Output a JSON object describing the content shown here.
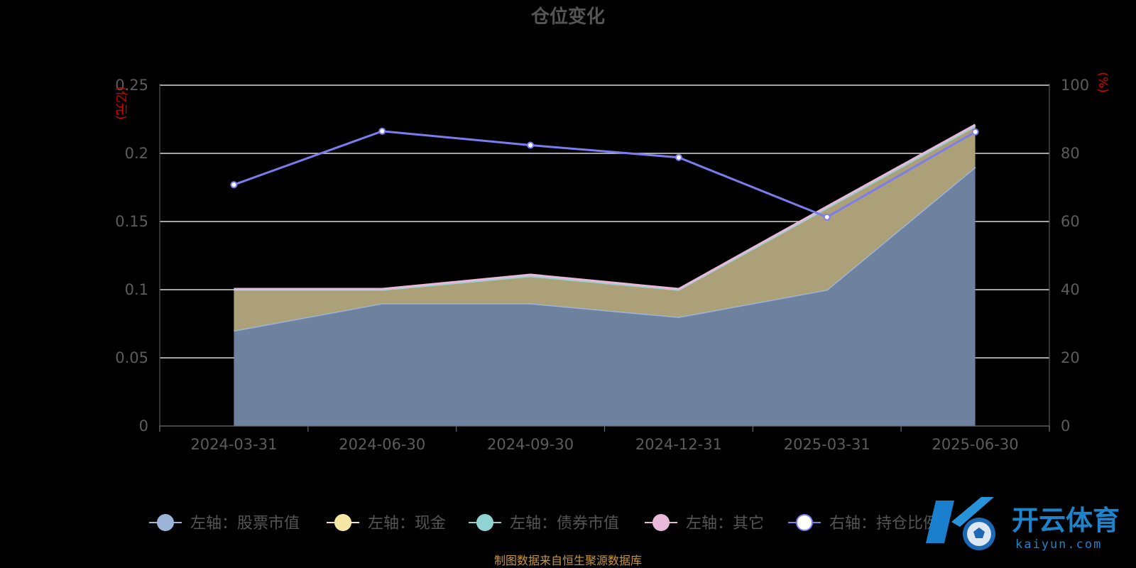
{
  "chart_data": {
    "type": "area",
    "title": "仓位变化",
    "categories": [
      "2024-03-31",
      "2024-06-30",
      "2024-09-30",
      "2024-12-31",
      "2025-03-31",
      "2025-06-30"
    ],
    "left_axis": {
      "unit": "(亿元)",
      "min": 0,
      "max": 0.25,
      "ticks": [
        "0",
        "0.05",
        "0.1",
        "0.15",
        "0.2",
        "0.25"
      ]
    },
    "right_axis": {
      "unit": "(%)",
      "min": 0,
      "max": 100,
      "ticks": [
        "0",
        "20",
        "40",
        "60",
        "80",
        "100"
      ]
    },
    "grid": true,
    "legend_position": "bottom",
    "series": [
      {
        "name": "左轴：股票市值",
        "axis": "left",
        "stack": true,
        "color": "#9db4d9",
        "fill": "#6e82a0",
        "values": [
          0.07,
          0.09,
          0.09,
          0.08,
          0.1,
          0.19
        ]
      },
      {
        "name": "左轴：现金",
        "axis": "left",
        "stack": true,
        "color": "#f6e6a4",
        "fill": "#aca078",
        "values": [
          0.03,
          0.01,
          0.02,
          0.02,
          0.06,
          0.03
        ]
      },
      {
        "name": "左轴：债券市值",
        "axis": "left",
        "stack": true,
        "color": "#8fd3d3",
        "fill": "#8fd3d3",
        "values": [
          0,
          0,
          0,
          0,
          0,
          0
        ]
      },
      {
        "name": "左轴：其它",
        "axis": "left",
        "stack": true,
        "color": "#e8b9d8",
        "fill": "#e8b9d8",
        "values": [
          0.0005,
          0.0005,
          0.001,
          0.0005,
          0.001,
          0.001
        ]
      },
      {
        "name": "右轴：持仓比例",
        "axis": "right",
        "stack": false,
        "color": "#7b7cf0",
        "fill": "#ffffff",
        "values": [
          70.8,
          86.5,
          82.4,
          78.8,
          61.3,
          86.3
        ]
      }
    ],
    "source": "制图数据来自恒生聚源数据库"
  },
  "watermark": {
    "brand": "开云体育",
    "site": "kaiyun.com"
  }
}
